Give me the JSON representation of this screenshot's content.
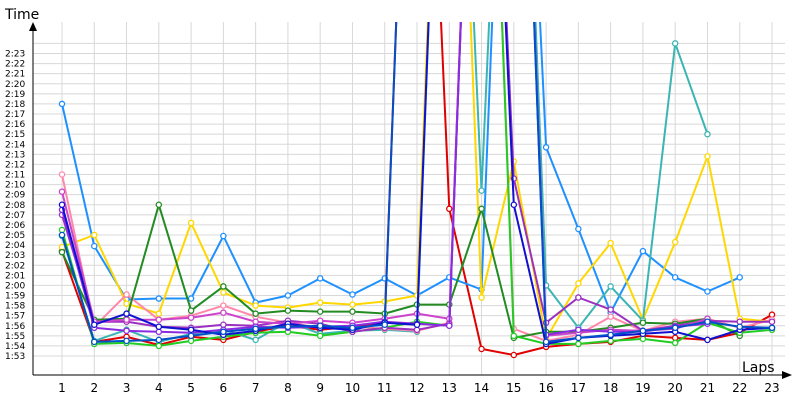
{
  "chart_data": {
    "type": "line",
    "title": "",
    "xlabel": "Laps",
    "ylabel": "Time",
    "x": [
      1,
      2,
      3,
      4,
      5,
      6,
      7,
      8,
      9,
      10,
      11,
      12,
      13,
      14,
      15,
      16,
      17,
      18,
      19,
      20,
      21,
      22,
      23
    ],
    "xlim": [
      1,
      23
    ],
    "ylim_seconds": [
      113,
      144
    ],
    "ytick_labels": [
      "1:53",
      "1:54",
      "1:55",
      "1:56",
      "1:57",
      "1:58",
      "1:59",
      "2:00",
      "2:01",
      "2:02",
      "2:03",
      "2:04",
      "2:05",
      "2:06",
      "2:07",
      "2:08",
      "2:09",
      "2:10",
      "2:11",
      "2:12",
      "2:13",
      "2:14",
      "2:15",
      "2:16",
      "2:17",
      "2:18",
      "2:19",
      "2:20",
      "2:21",
      "2:22",
      "2:23"
    ],
    "xtick_labels": [
      "1",
      "2",
      "3",
      "4",
      "5",
      "6",
      "7",
      "8",
      "9",
      "10",
      "11",
      "12",
      "13",
      "14",
      "15",
      "16",
      "17",
      "18",
      "19",
      "20",
      "21",
      "22",
      "23"
    ],
    "grid": true,
    "legend": "none",
    "series": [
      {
        "color": "#e00000",
        "values": [
          123.4,
          114.4,
          114.9,
          114.1,
          114.9,
          114.6,
          115.4,
          116.0,
          115.6,
          115.9,
          116.4,
          200,
          127.6,
          113.7,
          113.1,
          113.9,
          114.2,
          114.4,
          115.0,
          114.8,
          114.6,
          115.3,
          117.1
        ]
      },
      {
        "color": "#1e90ff",
        "values": [
          138.0,
          123.9,
          118.6,
          118.7,
          118.7,
          124.9,
          118.3,
          119.0,
          120.7,
          119.1,
          120.7,
          119.0,
          120.8,
          119.6,
          200,
          133.7,
          125.6,
          117.3,
          123.4,
          120.8,
          119.4,
          120.8,
          null
        ]
      },
      {
        "color": "#ffd700",
        "values": [
          123.8,
          125.0,
          118.2,
          117.2,
          126.2,
          119.3,
          118.0,
          117.8,
          118.3,
          118.1,
          118.4,
          119.0,
          200,
          118.8,
          132.3,
          114.7,
          120.2,
          124.2,
          116.6,
          124.3,
          132.8,
          116.7,
          116.4
        ]
      },
      {
        "color": "#3cb4b4",
        "values": [
          124.9,
          114.5,
          115.6,
          114.4,
          115.2,
          115.6,
          114.6,
          116.4,
          115.2,
          115.5,
          115.6,
          115.4,
          200,
          129.4,
          200,
          120.0,
          115.8,
          119.9,
          116.5,
          144.0,
          135.0,
          null,
          null
        ]
      },
      {
        "color": "#ff88aa",
        "values": [
          131.0,
          115.9,
          119.1,
          116.6,
          117.0,
          118.0,
          116.9,
          116.3,
          115.8,
          115.9,
          115.7,
          115.5,
          116.3,
          200,
          115.7,
          114.5,
          115.1,
          116.9,
          115.5,
          116.4,
          116.7,
          115.8,
          116.6
        ]
      },
      {
        "color": "#228b22",
        "values": [
          123.3,
          116.6,
          116.7,
          128.0,
          117.5,
          119.9,
          117.2,
          117.5,
          117.4,
          117.4,
          117.2,
          118.1,
          118.1,
          127.6,
          114.8,
          115.4,
          115.4,
          115.8,
          116.3,
          116.2,
          116.7,
          115.0,
          null
        ]
      },
      {
        "color": "#22cc22",
        "values": [
          125.5,
          114.2,
          114.3,
          114.0,
          114.5,
          114.9,
          115.3,
          115.4,
          115.0,
          115.4,
          115.8,
          116.4,
          116.0,
          200,
          115.0,
          114.2,
          114.2,
          114.5,
          114.7,
          114.3,
          116.3,
          115.3,
          115.6
        ]
      },
      {
        "color": "#9b30c0",
        "values": [
          127.0,
          116.4,
          116.4,
          115.9,
          115.8,
          116.1,
          116.0,
          116.5,
          116.2,
          115.4,
          115.8,
          115.6,
          116.2,
          200,
          130.6,
          116.3,
          118.8,
          117.6,
          115.5,
          116.0,
          116.5,
          116.4,
          116.4
        ]
      },
      {
        "color": "#cc44cc",
        "values": [
          129.3,
          116.4,
          116.6,
          116.6,
          116.8,
          117.3,
          116.4,
          116.2,
          116.5,
          116.3,
          116.7,
          117.2,
          116.7,
          200,
          200,
          115.0,
          115.3,
          115.6,
          115.5,
          115.7,
          116.7,
          null,
          null
        ]
      },
      {
        "color": "#8a2be2",
        "values": [
          127.5,
          115.8,
          115.5,
          115.4,
          115.3,
          115.6,
          115.9,
          115.8,
          115.9,
          116.0,
          116.4,
          116.2,
          116.0,
          200,
          200,
          115.1,
          115.6,
          115.4,
          115.4,
          115.9,
          116.2,
          null,
          null
        ]
      },
      {
        "color": "#1010d0",
        "values": [
          128.0,
          116.1,
          117.2,
          115.9,
          115.6,
          115.1,
          115.5,
          116.2,
          115.8,
          115.6,
          116.3,
          116.1,
          200,
          200,
          128.0,
          114.2,
          114.8,
          115.0,
          115.2,
          115.4,
          114.6,
          115.6,
          115.8
        ]
      },
      {
        "color": "#0050c8",
        "values": [
          125.0,
          114.4,
          114.5,
          114.6,
          115.0,
          115.4,
          115.7,
          115.9,
          116.0,
          115.8,
          116.1,
          200,
          200,
          200,
          200,
          114.4,
          114.8,
          115.1,
          115.5,
          115.8,
          116.4,
          115.9,
          115.8
        ]
      }
    ]
  }
}
